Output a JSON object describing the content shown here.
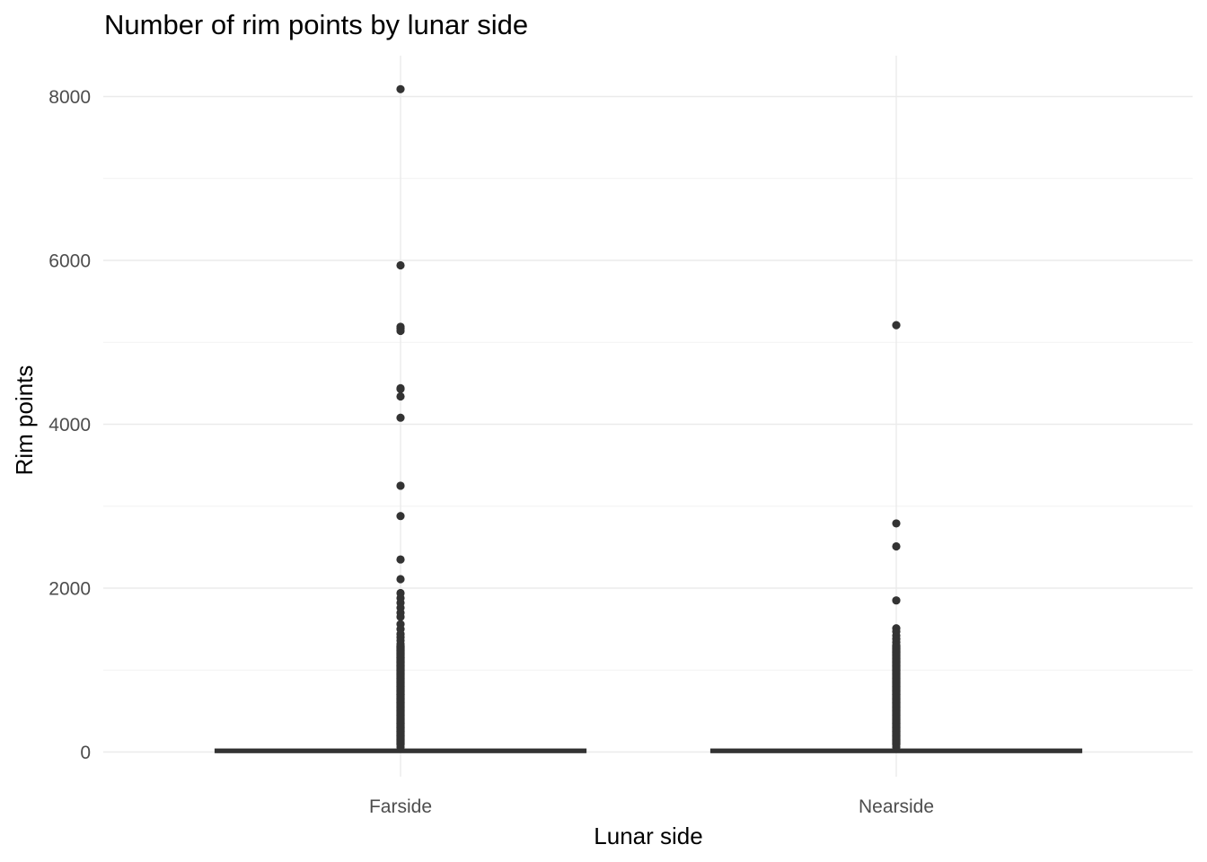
{
  "chart_data": {
    "type": "box",
    "title": "Number of rim points by lunar side",
    "xlabel": "Lunar side",
    "ylabel": "Rim points",
    "categories": [
      "Farside",
      "Nearside"
    ],
    "y_ticks": [
      0,
      2000,
      4000,
      6000,
      8000
    ],
    "ylim": [
      -300,
      8400
    ],
    "grid": true,
    "boxes": [
      {
        "category": "Farside",
        "q1": 5,
        "median": 10,
        "q3": 20,
        "whisker_low": 0,
        "whisker_high": 40,
        "outliers": [
          8090,
          5940,
          5190,
          5170,
          5140,
          4440,
          4430,
          4340,
          4080,
          3250,
          2880,
          2350,
          2110,
          1940,
          1880,
          1820,
          1760,
          1700,
          1650,
          1560,
          1500,
          1440,
          1400,
          1360,
          1320,
          1280,
          1240,
          1200,
          1150,
          1100,
          1050,
          1000,
          950,
          900,
          850,
          800,
          750,
          700,
          650,
          600,
          550,
          500,
          450,
          400,
          350,
          300,
          250,
          200,
          150,
          100,
          60
        ]
      },
      {
        "category": "Nearside",
        "q1": 5,
        "median": 10,
        "q3": 20,
        "whisker_low": 0,
        "whisker_high": 40,
        "outliers": [
          5210,
          2790,
          2510,
          1850,
          1510,
          1470,
          1420,
          1380,
          1340,
          1300,
          1260,
          1220,
          1180,
          1140,
          1100,
          1050,
          1000,
          950,
          900,
          850,
          800,
          750,
          700,
          650,
          600,
          550,
          500,
          450,
          400,
          350,
          300,
          250,
          200,
          150,
          100,
          60
        ]
      }
    ]
  }
}
